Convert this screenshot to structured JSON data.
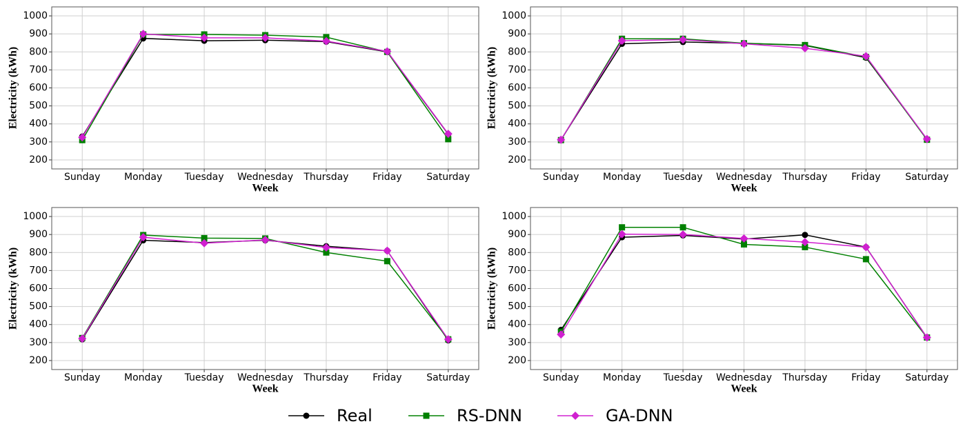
{
  "chart_data": [
    {
      "type": "line",
      "xlabel": "Week",
      "ylabel": "Electricity (kWh)",
      "categories": [
        "Sunday",
        "Monday",
        "Tuesday",
        "Wednesday",
        "Thursday",
        "Friday",
        "Saturday"
      ],
      "ylim": [
        150,
        1050
      ],
      "yticks": [
        200,
        300,
        400,
        500,
        600,
        700,
        800,
        900,
        1000
      ],
      "grid": true,
      "series": [
        {
          "name": "Real",
          "color": "#000000",
          "marker": "circle",
          "values": [
            330,
            875,
            862,
            865,
            857,
            800,
            343
          ]
        },
        {
          "name": "RS-DNN",
          "color": "#008000",
          "marker": "square",
          "values": [
            310,
            897,
            897,
            893,
            882,
            800,
            315
          ]
        },
        {
          "name": "GA-DNN",
          "color": "#d020d0",
          "marker": "diamond",
          "values": [
            325,
            900,
            878,
            878,
            860,
            803,
            345
          ]
        }
      ]
    },
    {
      "type": "line",
      "xlabel": "Week",
      "ylabel": "Electricity (kWh)",
      "categories": [
        "Sunday",
        "Monday",
        "Tuesday",
        "Wednesday",
        "Thursday",
        "Friday",
        "Saturday"
      ],
      "ylim": [
        150,
        1050
      ],
      "yticks": [
        200,
        300,
        400,
        500,
        600,
        700,
        800,
        900,
        1000
      ],
      "grid": true,
      "series": [
        {
          "color": "#000000",
          "marker": "circle",
          "values": [
            312,
            845,
            855,
            848,
            836,
            768,
            315
          ]
        },
        {
          "color": "#008000",
          "marker": "square",
          "values": [
            310,
            873,
            873,
            848,
            838,
            772,
            312
          ]
        },
        {
          "color": "#d020d0",
          "marker": "diamond",
          "values": [
            312,
            862,
            868,
            845,
            820,
            776,
            316
          ]
        }
      ]
    },
    {
      "type": "line",
      "xlabel": "Week",
      "ylabel": "Electricity (kWh)",
      "categories": [
        "Sunday",
        "Monday",
        "Tuesday",
        "Wednesday",
        "Thursday",
        "Friday",
        "Saturday"
      ],
      "ylim": [
        150,
        1050
      ],
      "yticks": [
        200,
        300,
        400,
        500,
        600,
        700,
        800,
        900,
        1000
      ],
      "grid": true,
      "series": [
        {
          "color": "#000000",
          "marker": "circle",
          "values": [
            318,
            868,
            855,
            868,
            835,
            810,
            312
          ]
        },
        {
          "color": "#008000",
          "marker": "square",
          "values": [
            325,
            897,
            880,
            878,
            800,
            752,
            318
          ]
        },
        {
          "color": "#d020d0",
          "marker": "diamond",
          "values": [
            322,
            885,
            852,
            870,
            828,
            810,
            318
          ]
        }
      ]
    },
    {
      "type": "line",
      "xlabel": "Week",
      "ylabel": "Electricity (kWh)",
      "categories": [
        "Sunday",
        "Monday",
        "Tuesday",
        "Wednesday",
        "Thursday",
        "Friday",
        "Saturday"
      ],
      "ylim": [
        150,
        1050
      ],
      "yticks": [
        200,
        300,
        400,
        500,
        600,
        700,
        800,
        900,
        1000
      ],
      "grid": true,
      "series": [
        {
          "color": "#000000",
          "marker": "circle",
          "values": [
            370,
            885,
            895,
            875,
            898,
            830,
            328
          ]
        },
        {
          "color": "#008000",
          "marker": "square",
          "values": [
            360,
            940,
            940,
            845,
            830,
            763,
            328
          ]
        },
        {
          "color": "#d020d0",
          "marker": "diamond",
          "values": [
            345,
            902,
            900,
            878,
            858,
            830,
            328
          ]
        }
      ]
    }
  ]
}
